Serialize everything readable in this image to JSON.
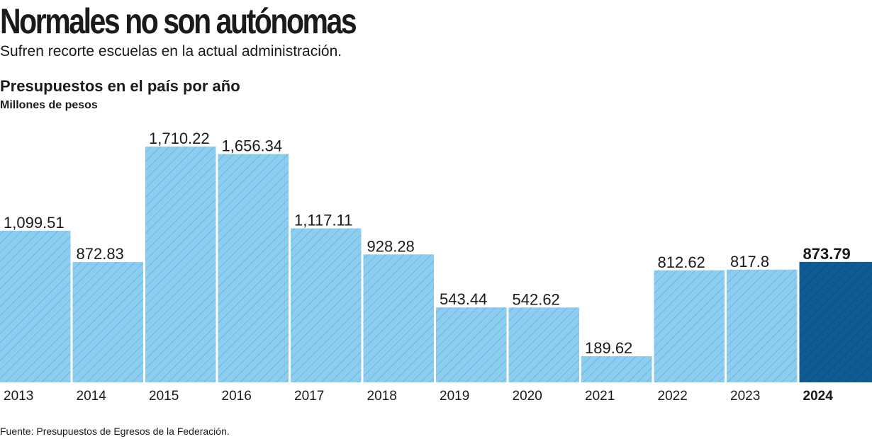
{
  "header": {
    "title": "Normales no son autónomas",
    "subtitle": "Sufren recorte escuelas en la actual administración."
  },
  "source": "Fuente: Presupuestos de Egresos de la Federación.",
  "colors": {
    "bar": "#8dcdf0",
    "bar_hatch": "#5aa6d6",
    "highlight": "#0f5c94",
    "highlight_hatch": "#0a4673",
    "text": "#1a1a1a"
  },
  "chart_data": {
    "type": "bar",
    "title": "Presupuestos en el país por año",
    "ylabel": "Millones de pesos",
    "xlabel": "",
    "categories": [
      "2013",
      "2014",
      "2015",
      "2016",
      "2017",
      "2018",
      "2019",
      "2020",
      "2021",
      "2022",
      "2023",
      "2024"
    ],
    "values": [
      1099.51,
      872.83,
      1710.22,
      1656.34,
      1117.11,
      928.28,
      543.44,
      542.62,
      189.62,
      812.62,
      817.8,
      873.79
    ],
    "value_labels": [
      "1,099.51",
      "872.83",
      "1,710.22",
      "1,656.34",
      "1,117.11",
      "928.28",
      "543.44",
      "542.62",
      "189.62",
      "812.62",
      "817.8",
      "873.79"
    ],
    "highlight_category": "2024",
    "ylim": [
      0,
      1710.22
    ],
    "grid": false,
    "legend": "none"
  }
}
